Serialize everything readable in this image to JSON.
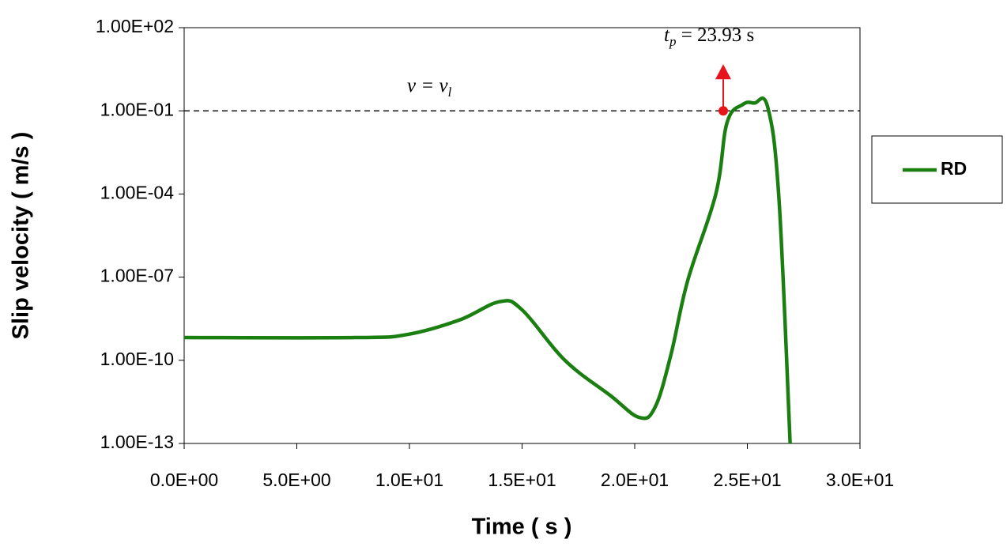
{
  "chart_data": {
    "type": "line",
    "x_label": "Time ( s )",
    "y_label": "Slip velocity ( m/s )",
    "log_y": true,
    "grid": false,
    "legend": "right",
    "x": [
      0,
      7.6,
      9.9,
      12.2,
      14.0,
      15.0,
      16.9,
      18.9,
      20.2,
      20.9,
      21.6,
      22.35,
      23.6,
      24.1,
      24.8,
      25.3,
      25.9,
      26.4,
      26.9
    ],
    "series": [
      {
        "name": "RD",
        "color": "#1a7f10",
        "values": [
          6.6e-10,
          6.6e-10,
          8.5e-10,
          2.8e-09,
          1.3e-08,
          6.6e-09,
          1e-10,
          5.5e-12,
          8.7e-13,
          2e-12,
          1.5e-10,
          7.4e-08,
          0.0001,
          0.038,
          0.17,
          0.19,
          0.14,
          7.4e-05,
          1e-13
        ]
      }
    ],
    "xlim": [
      0,
      30
    ],
    "xticks": [
      {
        "value": 0,
        "label": "0.0E+00"
      },
      {
        "value": 5,
        "label": "5.0E+00"
      },
      {
        "value": 10,
        "label": "1.0E+01"
      },
      {
        "value": 15,
        "label": "1.5E+01"
      },
      {
        "value": 20,
        "label": "2.0E+01"
      },
      {
        "value": 25,
        "label": "2.5E+01"
      },
      {
        "value": 30,
        "label": "3.0E+01"
      }
    ],
    "ylim": [
      1e-13,
      100
    ],
    "yticks": [
      {
        "value": 1e-13,
        "label": "1.00E-13"
      },
      {
        "value": 1e-10,
        "label": "1.00E-10"
      },
      {
        "value": 1e-07,
        "label": "1.00E-07"
      },
      {
        "value": 0.0001,
        "label": "1.00E-04"
      },
      {
        "value": 0.1,
        "label": "1.00E-01"
      },
      {
        "value": 100,
        "label": "1.00E+02"
      }
    ],
    "threshold": {
      "value": 0.1,
      "label": {
        "base": "v = v",
        "sub": "l"
      }
    },
    "marker": {
      "x": 23.93,
      "y": 0.1,
      "color": "#e8141b",
      "label": {
        "base": "t",
        "sub": "p",
        "rest": " = 23.93 s"
      }
    }
  }
}
